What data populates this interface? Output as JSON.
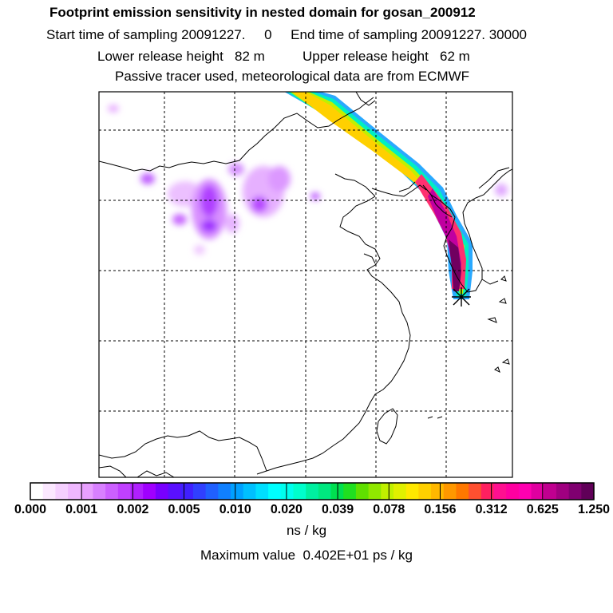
{
  "header": {
    "title": "Footprint emission sensitivity in nested domain for gosan_200912",
    "line2": "Start time of sampling 20091227.     0     End time of sampling 20091227. 30000",
    "line3": "Lower release height   82 m          Upper release height   62 m",
    "line4": "Passive tracer used, meteorological data are from ECMWF"
  },
  "colorbar": {
    "ticks": [
      "0.000",
      "0.001",
      "0.002",
      "0.005",
      "0.010",
      "0.020",
      "0.039",
      "0.078",
      "0.156",
      "0.312",
      "0.625",
      "1.250"
    ],
    "colors": [
      "#ffffff",
      "#fbe8ff",
      "#f5d0ff",
      "#efb8ff",
      "#e8a0ff",
      "#d880ff",
      "#cc60ff",
      "#c040ff",
      "#b020ff",
      "#a000ff",
      "#7800ff",
      "#5a10ff",
      "#4020ff",
      "#3040ff",
      "#2060ff",
      "#1080ff",
      "#00a0ff",
      "#00c0ff",
      "#00dfff",
      "#00ffff",
      "#00ffee",
      "#00ffcc",
      "#00f0a0",
      "#00e880",
      "#00e050",
      "#20e020",
      "#60e000",
      "#90e800",
      "#c0f000",
      "#e0f000",
      "#ffe800",
      "#ffd000",
      "#ffb800",
      "#ff9800",
      "#ff7800",
      "#ff5030",
      "#ff2060",
      "#ff1090",
      "#ff00a0",
      "#ff00b0",
      "#e000a0",
      "#c00090",
      "#a00080",
      "#800070",
      "#600058"
    ],
    "units": "ns / kg"
  },
  "max_value_text": "Maximum value  0.402E+01 ps / kg",
  "release_marker": "cross-icon"
}
